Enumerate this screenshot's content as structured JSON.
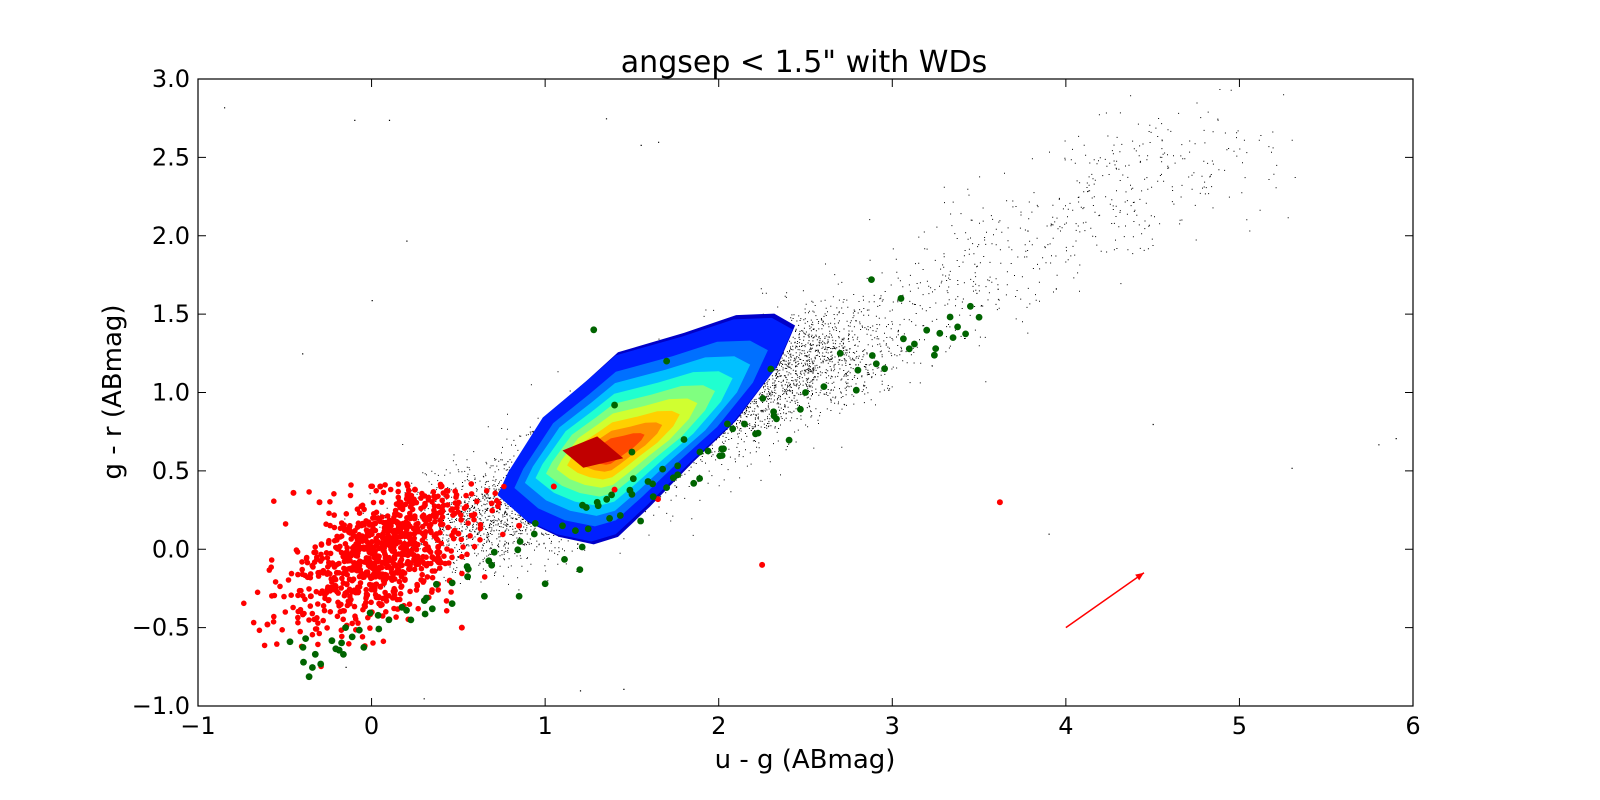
{
  "chart_data": {
    "type": "scatter",
    "title": "angsep < 1.5\" with WDs",
    "xlabel": "u - g (ABmag)",
    "ylabel": "g - r (ABmag)",
    "xlim": [
      -1,
      6
    ],
    "ylim": [
      -1.0,
      3.0
    ],
    "xticks": [
      -1,
      0,
      1,
      2,
      3,
      4,
      5,
      6
    ],
    "xtick_labels": [
      "−1",
      "0",
      "1",
      "2",
      "3",
      "4",
      "5",
      "6"
    ],
    "yticks": [
      -1.0,
      -0.5,
      0.0,
      0.5,
      1.0,
      1.5,
      2.0,
      2.5,
      3.0
    ],
    "ytick_labels": [
      "−1.0",
      "−0.5",
      "0.0",
      "0.5",
      "1.0",
      "1.5",
      "2.0",
      "2.5",
      "3.0"
    ],
    "grid": false,
    "legend": "none",
    "series": [
      {
        "kind": "scatter-density",
        "color": "#000000",
        "description_of_distribution": "dense elongated cloud along g-r = 0.57*(u-g) - 0.2",
        "approx_points": [
          [
            -0.85,
            2.82
          ],
          [
            -0.1,
            2.74
          ],
          [
            0.1,
            2.74
          ],
          [
            1.35,
            2.75
          ],
          [
            1.55,
            2.58
          ],
          [
            1.65,
            2.6
          ],
          [
            0.2,
            1.97
          ],
          [
            0.0,
            1.59
          ],
          [
            -0.4,
            1.25
          ],
          [
            1.2,
            -0.9
          ],
          [
            1.45,
            -0.89
          ],
          [
            0.3,
            -0.95
          ],
          [
            -0.15,
            -0.75
          ],
          [
            3.9,
            0.1
          ],
          [
            5.8,
            0.67
          ],
          [
            5.9,
            0.71
          ],
          [
            4.5,
            0.8
          ],
          [
            5.3,
            0.52
          ]
        ]
      },
      {
        "kind": "contour",
        "colormap": "jet",
        "levels_colors": [
          "#0000c8",
          "#0020ff",
          "#0070ff",
          "#00c0ff",
          "#20ffd0",
          "#80ff80",
          "#d0ff30",
          "#ffd000",
          "#ff9000",
          "#ff4800",
          "#c00000"
        ],
        "outer_polygon": [
          [
            0.74,
            0.32
          ],
          [
            0.8,
            0.48
          ],
          [
            1.0,
            0.86
          ],
          [
            1.24,
            1.1
          ],
          [
            1.42,
            1.29
          ],
          [
            1.8,
            1.42
          ],
          [
            2.1,
            1.54
          ],
          [
            2.32,
            1.55
          ],
          [
            2.44,
            1.47
          ],
          [
            2.34,
            1.2
          ],
          [
            2.1,
            0.83
          ],
          [
            1.85,
            0.55
          ],
          [
            1.6,
            0.25
          ],
          [
            1.42,
            0.05
          ],
          [
            1.28,
            0.0
          ],
          [
            1.08,
            0.05
          ],
          [
            0.9,
            0.15
          ]
        ],
        "peak_polygon": [
          [
            1.1,
            0.63
          ],
          [
            1.3,
            0.72
          ],
          [
            1.45,
            0.58
          ],
          [
            1.22,
            0.52
          ]
        ]
      },
      {
        "name": "",
        "kind": "scatter",
        "color": "#ff0000",
        "values": [
          [
            -0.45,
            0.36
          ],
          [
            -0.3,
            0.3
          ],
          [
            0.05,
            0.4
          ],
          [
            0.25,
            0.38
          ],
          [
            0.4,
            0.4
          ],
          [
            -0.6,
            -0.48
          ],
          [
            -0.35,
            -0.3
          ],
          [
            -0.2,
            -0.15
          ],
          [
            0.0,
            0.0
          ],
          [
            0.2,
            0.1
          ],
          [
            0.35,
            -0.05
          ],
          [
            0.5,
            0.1
          ],
          [
            0.52,
            -0.5
          ],
          [
            0.45,
            -0.2
          ],
          [
            2.25,
            -0.1
          ],
          [
            3.62,
            0.3
          ],
          [
            1.05,
            0.4
          ],
          [
            1.4,
            0.38
          ],
          [
            1.65,
            0.32
          ],
          [
            0.85,
            0.15
          ]
        ]
      },
      {
        "name": "",
        "kind": "scatter",
        "color": "#006400",
        "values": [
          [
            -0.47,
            -0.59
          ],
          [
            -0.38,
            -0.57
          ],
          [
            -0.15,
            -0.5
          ],
          [
            0.1,
            -0.45
          ],
          [
            0.35,
            -0.38
          ],
          [
            0.65,
            -0.3
          ],
          [
            0.85,
            -0.3
          ],
          [
            1.0,
            -0.22
          ],
          [
            1.2,
            -0.13
          ],
          [
            1.28,
            1.4
          ],
          [
            1.7,
            1.2
          ],
          [
            1.4,
            0.92
          ],
          [
            1.5,
            0.62
          ],
          [
            1.8,
            0.7
          ],
          [
            2.05,
            0.8
          ],
          [
            2.3,
            1.15
          ],
          [
            2.5,
            1.0
          ],
          [
            2.7,
            1.25
          ],
          [
            2.88,
            1.72
          ],
          [
            3.05,
            1.6
          ],
          [
            3.25,
            1.28
          ],
          [
            3.35,
            1.35
          ],
          [
            3.45,
            1.55
          ],
          [
            3.5,
            1.48
          ],
          [
            1.3,
            0.3
          ],
          [
            1.5,
            0.35
          ],
          [
            1.1,
            0.15
          ],
          [
            1.55,
            0.18
          ]
        ]
      }
    ],
    "annotations": [
      {
        "type": "arrow",
        "color": "#ff0000",
        "from": [
          4.0,
          -0.5
        ],
        "to": [
          4.45,
          -0.15
        ]
      }
    ]
  }
}
